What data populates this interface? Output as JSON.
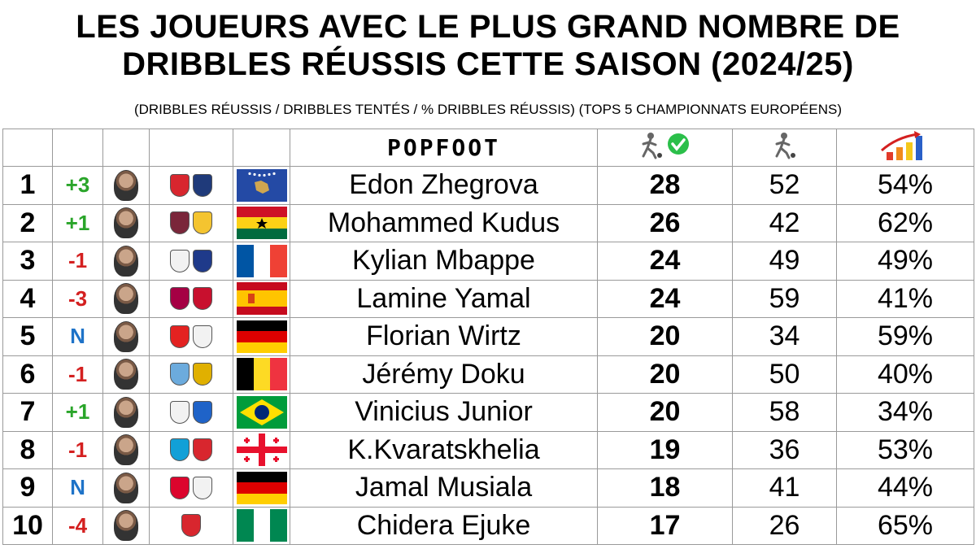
{
  "title_line1": "LES JOUEURS AVEC LE PLUS GRAND NOMBRE DE",
  "title_line2": "DRIBBLES RÉUSSIS CETTE SAISON (2024/25)",
  "subtitle": "(DRIBBLES RÉUSSIS / DRIBBLES TENTÉS / % DRIBBLES RÉUSSIS) (TOPS 5 CHAMPIONNATS EUROPÉENS)",
  "brand": "POPFOOT",
  "icons": {
    "successful": "player-dribble-check-icon",
    "attempted": "player-dribble-icon",
    "percentage": "bar-chart-arrow-icon"
  },
  "colors": {
    "up": "#2aa52a",
    "down": "#d42020",
    "new": "#1e73c8"
  },
  "players": [
    {
      "rank": "1",
      "change": "+3",
      "trend": "up",
      "name": "Edon Zhegrova",
      "successful": "28",
      "attempted": "52",
      "pct": "54%",
      "club_colors": [
        "#d8262e",
        "#1f3a7a"
      ],
      "flag": "kosovo"
    },
    {
      "rank": "2",
      "change": "+1",
      "trend": "up",
      "name": "Mohammed Kudus",
      "successful": "26",
      "attempted": "42",
      "pct": "62%",
      "club_colors": [
        "#7a263a",
        "#f4c430"
      ],
      "flag": "ghana"
    },
    {
      "rank": "3",
      "change": "-1",
      "trend": "down",
      "name": "Kylian Mbappe",
      "successful": "24",
      "attempted": "49",
      "pct": "49%",
      "club_colors": [
        "#f2f2f2",
        "#1f3a8a"
      ],
      "flag": "france"
    },
    {
      "rank": "4",
      "change": "-3",
      "trend": "down",
      "name": "Lamine Yamal",
      "successful": "24",
      "attempted": "59",
      "pct": "41%",
      "club_colors": [
        "#a50044",
        "#c8102e"
      ],
      "flag": "spain"
    },
    {
      "rank": "5",
      "change": "N",
      "trend": "new",
      "name": "Florian Wirtz",
      "successful": "20",
      "attempted": "34",
      "pct": "59%",
      "club_colors": [
        "#e32221",
        "#f2f2f2"
      ],
      "flag": "germany"
    },
    {
      "rank": "6",
      "change": "-1",
      "trend": "down",
      "name": "Jérémy Doku",
      "successful": "20",
      "attempted": "50",
      "pct": "40%",
      "club_colors": [
        "#6cabdd",
        "#e0b000"
      ],
      "flag": "belgium"
    },
    {
      "rank": "7",
      "change": "+1",
      "trend": "up",
      "name": "Vinicius Junior",
      "successful": "20",
      "attempted": "58",
      "pct": "34%",
      "club_colors": [
        "#f2f2f2",
        "#1f63c8"
      ],
      "flag": "brazil"
    },
    {
      "rank": "8",
      "change": "-1",
      "trend": "down",
      "name": "K.Kvaratskhelia",
      "successful": "19",
      "attempted": "36",
      "pct": "53%",
      "club_colors": [
        "#12a0d7",
        "#d8262e"
      ],
      "flag": "georgia"
    },
    {
      "rank": "9",
      "change": "N",
      "trend": "new",
      "name": "Jamal Musiala",
      "successful": "18",
      "attempted": "41",
      "pct": "44%",
      "club_colors": [
        "#dc052d",
        "#f2f2f2"
      ],
      "flag": "germany"
    },
    {
      "rank": "10",
      "change": "-4",
      "trend": "down",
      "name": "Chidera Ejuke",
      "successful": "17",
      "attempted": "26",
      "pct": "65%",
      "club_colors": [
        "#d8262e"
      ],
      "flag": "nigeria"
    }
  ]
}
